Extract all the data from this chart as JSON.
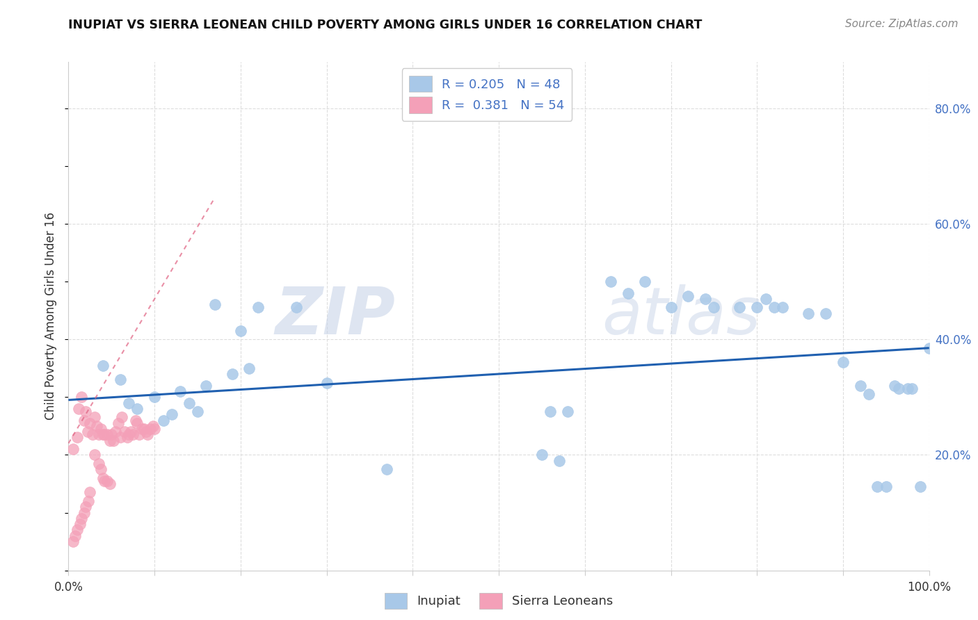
{
  "title": "INUPIAT VS SIERRA LEONEAN CHILD POVERTY AMONG GIRLS UNDER 16 CORRELATION CHART",
  "source": "Source: ZipAtlas.com",
  "ylabel": "Child Poverty Among Girls Under 16",
  "color_blue": "#a8c8e8",
  "color_pink": "#f4a0b8",
  "line_blue": "#2060b0",
  "line_pink": "#e06080",
  "watermark_zip": "ZIP",
  "watermark_atlas": "atlas",
  "inupiat_x": [
    0.04,
    0.06,
    0.07,
    0.08,
    0.1,
    0.11,
    0.12,
    0.13,
    0.14,
    0.15,
    0.16,
    0.17,
    0.19,
    0.2,
    0.21,
    0.22,
    0.265,
    0.3,
    0.37,
    0.56,
    0.58,
    0.63,
    0.65,
    0.67,
    0.7,
    0.72,
    0.74,
    0.75,
    0.78,
    0.8,
    0.81,
    0.82,
    0.83,
    0.86,
    0.88,
    0.9,
    0.92,
    0.93,
    0.94,
    0.95,
    0.96,
    0.965,
    0.975,
    0.98,
    0.99,
    1.0,
    0.55,
    0.57
  ],
  "inupiat_y": [
    0.355,
    0.33,
    0.29,
    0.28,
    0.3,
    0.26,
    0.27,
    0.31,
    0.29,
    0.275,
    0.32,
    0.46,
    0.34,
    0.415,
    0.35,
    0.455,
    0.455,
    0.325,
    0.175,
    0.275,
    0.275,
    0.5,
    0.48,
    0.5,
    0.455,
    0.475,
    0.47,
    0.455,
    0.455,
    0.455,
    0.47,
    0.455,
    0.455,
    0.445,
    0.445,
    0.36,
    0.32,
    0.305,
    0.145,
    0.145,
    0.32,
    0.315,
    0.315,
    0.315,
    0.145,
    0.385,
    0.2,
    0.19
  ],
  "sierra_x": [
    0.005,
    0.01,
    0.012,
    0.015,
    0.018,
    0.02,
    0.022,
    0.025,
    0.028,
    0.03,
    0.033,
    0.035,
    0.038,
    0.04,
    0.042,
    0.045,
    0.048,
    0.05,
    0.052,
    0.055,
    0.058,
    0.06,
    0.062,
    0.065,
    0.068,
    0.07,
    0.072,
    0.075,
    0.078,
    0.08,
    0.082,
    0.085,
    0.088,
    0.09,
    0.092,
    0.095,
    0.098,
    0.1,
    0.005,
    0.008,
    0.01,
    0.013,
    0.015,
    0.018,
    0.02,
    0.023,
    0.025,
    0.03,
    0.035,
    0.038,
    0.04,
    0.042,
    0.045,
    0.048
  ],
  "sierra_y": [
    0.21,
    0.23,
    0.28,
    0.3,
    0.26,
    0.275,
    0.24,
    0.255,
    0.235,
    0.265,
    0.25,
    0.235,
    0.245,
    0.235,
    0.235,
    0.235,
    0.225,
    0.235,
    0.225,
    0.24,
    0.255,
    0.23,
    0.265,
    0.24,
    0.23,
    0.235,
    0.24,
    0.235,
    0.26,
    0.255,
    0.235,
    0.245,
    0.245,
    0.24,
    0.235,
    0.245,
    0.25,
    0.245,
    0.05,
    0.06,
    0.07,
    0.08,
    0.09,
    0.1,
    0.11,
    0.12,
    0.135,
    0.2,
    0.185,
    0.175,
    0.16,
    0.155,
    0.155,
    0.15
  ],
  "blue_line_x": [
    0.0,
    1.0
  ],
  "blue_line_y": [
    0.295,
    0.385
  ],
  "pink_line_x": [
    0.0,
    0.17
  ],
  "pink_line_y": [
    0.22,
    0.645
  ],
  "xlim": [
    0.0,
    1.0
  ],
  "ylim": [
    0.0,
    0.88
  ],
  "y_ticks": [
    0.2,
    0.4,
    0.6,
    0.8
  ],
  "y_tick_labels": [
    "20.0%",
    "40.0%",
    "60.0%",
    "80.0%"
  ],
  "legend_text": [
    "R = 0.205   N = 48",
    "R =  0.381   N = 54"
  ]
}
